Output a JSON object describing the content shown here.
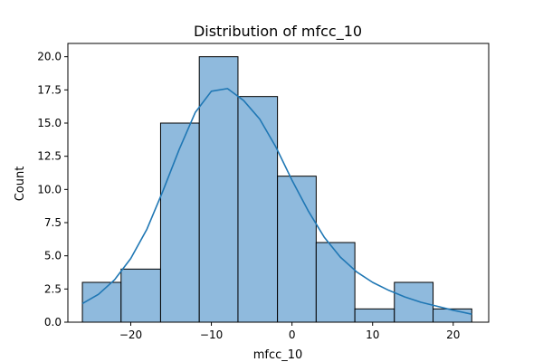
{
  "chart_data": {
    "type": "bar",
    "title": "Distribution of mfcc_10",
    "xlabel": "mfcc_10",
    "ylabel": "Count",
    "xlim": [
      -27.8,
      24.4
    ],
    "ylim": [
      0,
      21.0
    ],
    "xticks": [
      -20,
      -10,
      0,
      10,
      20
    ],
    "xtick_labels": [
      "−20",
      "−10",
      "0",
      "10",
      "20"
    ],
    "yticks": [
      0,
      2.5,
      5,
      7.5,
      10,
      12.5,
      15,
      17.5,
      20
    ],
    "ytick_labels": [
      "0.0",
      "2.5",
      "5.0",
      "7.5",
      "10.0",
      "12.5",
      "15.0",
      "17.5",
      "20.0"
    ],
    "bins": [
      {
        "start": -26.0,
        "end": -21.2,
        "count": 3
      },
      {
        "start": -21.2,
        "end": -16.3,
        "count": 4
      },
      {
        "start": -16.3,
        "end": -11.5,
        "count": 15
      },
      {
        "start": -11.5,
        "end": -6.7,
        "count": 20
      },
      {
        "start": -6.7,
        "end": -1.8,
        "count": 17
      },
      {
        "start": -1.8,
        "end": 3.0,
        "count": 11
      },
      {
        "start": 3.0,
        "end": 7.8,
        "count": 6
      },
      {
        "start": 7.8,
        "end": 12.7,
        "count": 1
      },
      {
        "start": 12.7,
        "end": 17.5,
        "count": 3
      },
      {
        "start": 17.5,
        "end": 22.3,
        "count": 1
      }
    ],
    "kde": {
      "x": [
        -26.0,
        -24.0,
        -22.0,
        -20.0,
        -18.0,
        -16.0,
        -14.0,
        -12.0,
        -10.0,
        -8.0,
        -6.0,
        -4.0,
        -2.0,
        0.0,
        2.0,
        4.0,
        6.0,
        8.0,
        10.0,
        12.0,
        14.0,
        16.0,
        18.0,
        20.0,
        22.3
      ],
      "y": [
        1.4,
        2.1,
        3.2,
        4.8,
        7.0,
        9.9,
        13.0,
        15.8,
        17.4,
        17.6,
        16.7,
        15.3,
        13.2,
        10.7,
        8.4,
        6.4,
        4.9,
        3.8,
        3.0,
        2.4,
        1.9,
        1.5,
        1.2,
        0.9,
        0.6
      ]
    },
    "grid": false,
    "colors": {
      "bar_fill": "#8fbadd",
      "bar_edge": "#000000",
      "kde_line": "#1f77b4"
    }
  }
}
